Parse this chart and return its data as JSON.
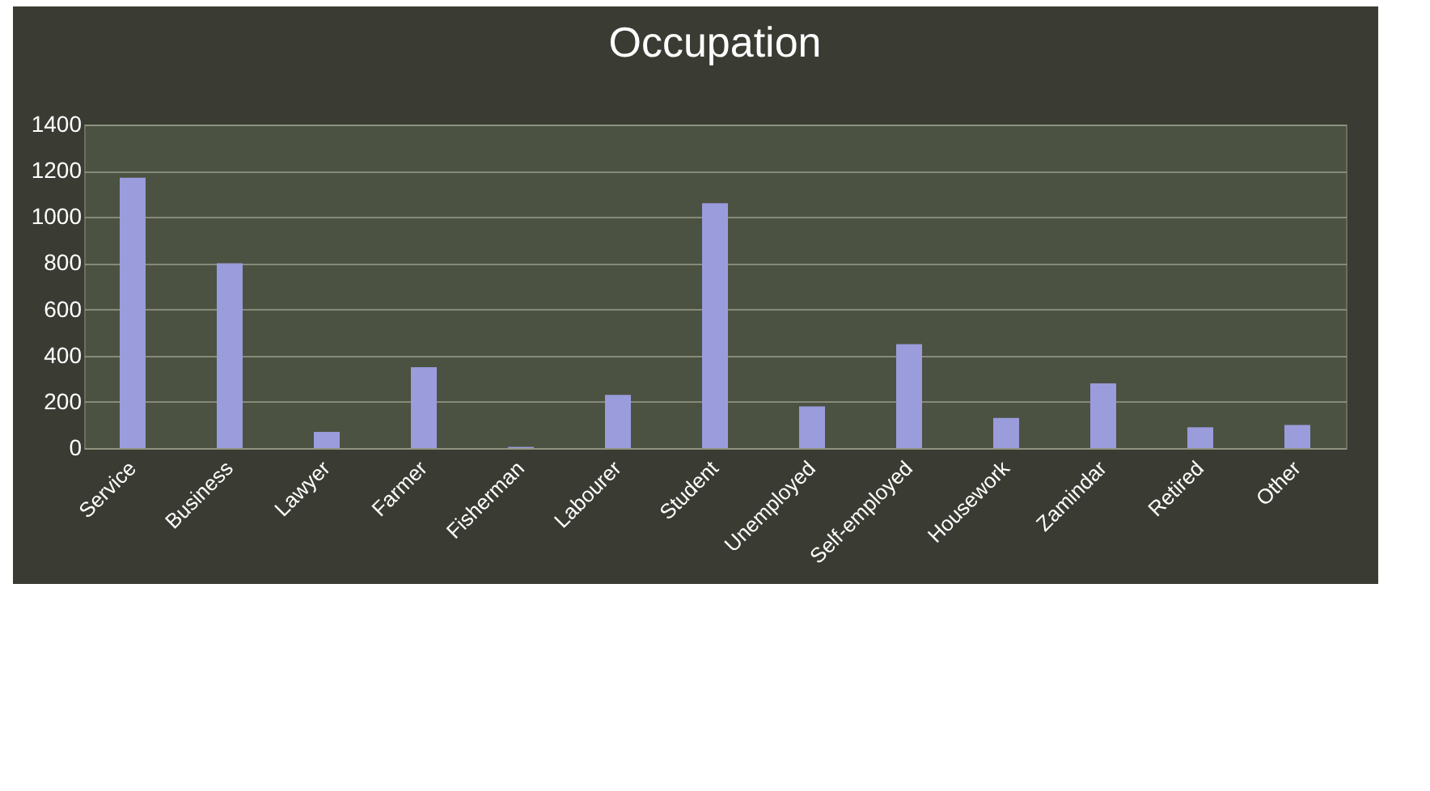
{
  "chart_data": {
    "type": "bar",
    "title": "Occupation",
    "categories": [
      "Service",
      "Business",
      "Lawyer",
      "Farmer",
      "Fisherman",
      "Labourer",
      "Student",
      "Unemployed",
      "Self-employed",
      "Housework",
      "Zamindar",
      "Retired",
      "Other"
    ],
    "values": [
      1170,
      800,
      70,
      350,
      5,
      230,
      1060,
      180,
      450,
      130,
      280,
      90,
      100
    ],
    "color": "#9a9cdc",
    "ylim": [
      0,
      1400
    ],
    "yticks": [
      0,
      200,
      400,
      600,
      800,
      1000,
      1200,
      1400
    ],
    "grid": true
  }
}
